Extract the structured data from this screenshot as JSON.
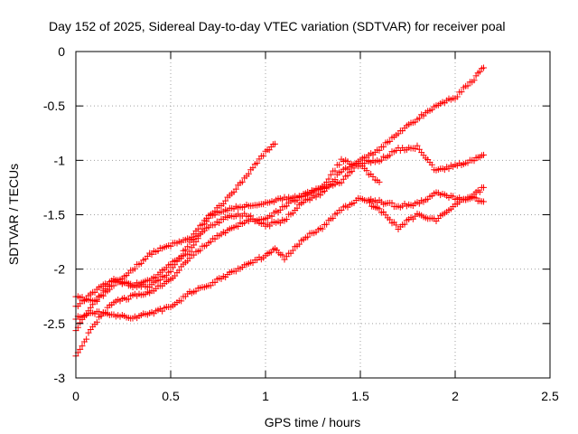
{
  "chart_data": {
    "type": "scatter",
    "title": "Day 152 of 2025, Sidereal Day-to-day VTEC variation (SDTVAR) for receiver poal",
    "xlabel": "GPS time / hours",
    "ylabel": "SDTVAR / TECUs",
    "xlim": [
      0,
      2.5
    ],
    "ylim": [
      -3,
      0
    ],
    "xticks": [
      0,
      0.5,
      1,
      1.5,
      2,
      2.5
    ],
    "xtick_labels": [
      "0",
      "0.5",
      "1",
      "1.5",
      "2",
      "2.5"
    ],
    "yticks": [
      0,
      -0.5,
      -1,
      -1.5,
      -2,
      -2.5,
      -3
    ],
    "ytick_labels": [
      "0",
      "-0.5",
      "-1",
      "-1.5",
      "-2",
      "-2.5",
      "-3"
    ],
    "grid": true,
    "legend": "none",
    "marker": "+",
    "color": "#ff0000",
    "series": [
      {
        "x": [
          0,
          0.1,
          0.2,
          0.3,
          0.4,
          0.5,
          0.6,
          0.7,
          0.8,
          0.9,
          1.0,
          1.05
        ],
        "y": [
          -2.55,
          -2.3,
          -2.15,
          -2.0,
          -1.85,
          -1.78,
          -1.72,
          -1.52,
          -1.35,
          -1.15,
          -0.92,
          -0.85
        ]
      },
      {
        "x": [
          0,
          0.1,
          0.2,
          0.3,
          0.4,
          0.5,
          0.6,
          0.7,
          0.8,
          0.9,
          1.0,
          1.1,
          1.2,
          1.3,
          1.4,
          1.5,
          1.6
        ],
        "y": [
          -2.25,
          -2.3,
          -2.1,
          -2.15,
          -2.1,
          -1.95,
          -1.85,
          -1.52,
          -1.45,
          -1.42,
          -1.4,
          -1.35,
          -1.32,
          -1.25,
          -1.0,
          -1.05,
          -1.2
        ]
      },
      {
        "x": [
          0,
          0.1,
          0.2,
          0.3,
          0.4,
          0.5,
          0.6,
          0.7,
          0.8,
          0.9,
          1.0,
          1.1,
          1.2,
          1.3,
          1.4,
          1.5,
          1.6,
          1.7,
          1.8,
          1.9,
          2.0,
          2.1,
          2.15
        ],
        "y": [
          -2.35,
          -2.2,
          -2.1,
          -2.15,
          -2.15,
          -2.02,
          -1.75,
          -1.62,
          -1.52,
          -1.5,
          -1.6,
          -1.55,
          -1.38,
          -1.3,
          -1.1,
          -1.02,
          -1.0,
          -0.9,
          -0.88,
          -1.1,
          -1.05,
          -1.0,
          -0.95
        ]
      },
      {
        "x": [
          0,
          0.1,
          0.2,
          0.3,
          0.4,
          0.5,
          0.6,
          0.7,
          0.8,
          0.9,
          1.0,
          1.05,
          1.1,
          1.2,
          1.3,
          1.4,
          1.5,
          1.6,
          1.7,
          1.8,
          1.9,
          2.0,
          2.1,
          2.15
        ],
        "y": [
          -2.45,
          -2.4,
          -2.42,
          -2.45,
          -2.4,
          -2.35,
          -2.22,
          -2.15,
          -2.05,
          -1.95,
          -1.88,
          -1.8,
          -1.9,
          -1.72,
          -1.62,
          -1.45,
          -1.35,
          -1.38,
          -1.42,
          -1.4,
          -1.3,
          -1.35,
          -1.35,
          -1.38
        ]
      },
      {
        "x": [
          0,
          0.1,
          0.2,
          0.3,
          0.4,
          0.5,
          0.6,
          0.7,
          0.8,
          0.9,
          1.0,
          1.1,
          1.2,
          1.3,
          1.4,
          1.5,
          1.6,
          1.7,
          1.8,
          1.9,
          2.0,
          2.1,
          2.15
        ],
        "y": [
          -2.8,
          -2.5,
          -2.3,
          -2.25,
          -2.2,
          -2.1,
          -1.9,
          -1.75,
          -1.65,
          -1.55,
          -1.55,
          -1.42,
          -1.32,
          -1.25,
          -1.2,
          -1.0,
          -0.9,
          -0.75,
          -0.62,
          -0.5,
          -0.42,
          -0.25,
          -0.15
        ]
      },
      {
        "x": [
          1.55,
          1.6,
          1.7,
          1.8,
          1.9,
          2.0,
          2.1,
          2.15
        ],
        "y": [
          -1.4,
          -1.45,
          -1.62,
          -1.5,
          -1.55,
          -1.4,
          -1.32,
          -1.25
        ]
      }
    ]
  }
}
